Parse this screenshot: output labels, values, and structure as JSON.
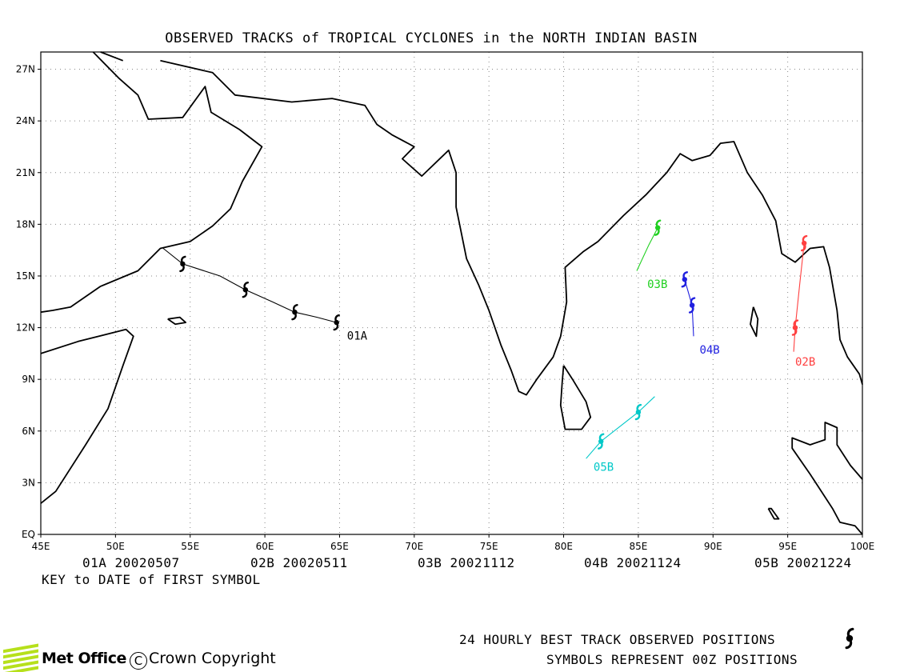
{
  "title": "OBSERVED TRACKS of TROPICAL CYCLONES in the NORTH INDIAN BASIN",
  "map": {
    "lon_range": [
      45,
      100
    ],
    "lat_range": [
      0,
      28
    ],
    "grid": "dotted",
    "lon_ticks": [
      "45E",
      "50E",
      "55E",
      "60E",
      "65E",
      "70E",
      "75E",
      "80E",
      "85E",
      "90E",
      "95E",
      "100E"
    ],
    "lat_ticks": [
      "EQ",
      "3N",
      "6N",
      "9N",
      "12N",
      "15N",
      "18N",
      "21N",
      "24N",
      "27N"
    ]
  },
  "storms": [
    {
      "id": "01A",
      "color": "#000000",
      "first_date": "20020507",
      "track": [
        [
          53.2,
          16.6
        ],
        [
          54.5,
          15.7
        ],
        [
          57,
          15
        ],
        [
          58.7,
          14.2
        ],
        [
          60.5,
          13.5
        ],
        [
          62,
          12.9
        ],
        [
          63.5,
          12.6
        ],
        [
          64.8,
          12.3
        ]
      ],
      "symbols": [
        [
          54.5,
          15.7
        ],
        [
          58.7,
          14.2
        ],
        [
          62,
          12.9
        ],
        [
          64.8,
          12.3
        ]
      ],
      "label": [
        65.5,
        11.3
      ]
    },
    {
      "id": "02B",
      "color": "#ff4040",
      "first_date": "20020511",
      "track": [
        [
          95.4,
          10.6
        ],
        [
          95.5,
          12
        ],
        [
          95.8,
          14.5
        ],
        [
          96.1,
          16.9
        ]
      ],
      "symbols": [
        [
          95.5,
          12
        ],
        [
          96.1,
          16.9
        ]
      ],
      "label": [
        95.5,
        9.8
      ]
    },
    {
      "id": "03B",
      "color": "#20d020",
      "first_date": "20021112",
      "track": [
        [
          84.9,
          15.3
        ],
        [
          85.7,
          16.8
        ],
        [
          86.3,
          17.8
        ]
      ],
      "symbols": [
        [
          86.3,
          17.8
        ]
      ],
      "label": [
        85.6,
        14.3
      ]
    },
    {
      "id": "04B",
      "color": "#2020e0",
      "first_date": "20021124",
      "track": [
        [
          88.1,
          14.8
        ],
        [
          88.6,
          13.3
        ],
        [
          88.7,
          11.5
        ]
      ],
      "symbols": [
        [
          88.1,
          14.8
        ],
        [
          88.6,
          13.3
        ]
      ],
      "label": [
        89.1,
        10.5
      ]
    },
    {
      "id": "05B",
      "color": "#00c8c8",
      "first_date": "20021224",
      "track": [
        [
          81.5,
          4.4
        ],
        [
          82.5,
          5.4
        ],
        [
          85,
          7.1
        ],
        [
          86.1,
          8.0
        ]
      ],
      "symbols": [
        [
          82.5,
          5.4
        ],
        [
          85,
          7.1
        ]
      ],
      "label": [
        82,
        3.7
      ]
    }
  ],
  "key_caption": "KEY to DATE of FIRST SYMBOL",
  "legend": {
    "line1": "24 HOURLY BEST TRACK OBSERVED POSITIONS",
    "line2": "SYMBOLS REPRESENT 00Z POSITIONS"
  },
  "footer": {
    "logo_text": "Met Office",
    "copyright": "Crown Copyright",
    "copyright_symbol": "C"
  },
  "coastlines": {
    "arabia": [
      [
        48.5,
        28
      ],
      [
        50.2,
        26.5
      ],
      [
        51.5,
        25.5
      ],
      [
        52.2,
        24.1
      ],
      [
        54.5,
        24.2
      ],
      [
        56,
        26
      ],
      [
        56.4,
        24.5
      ],
      [
        58.3,
        23.5
      ],
      [
        59.8,
        22.5
      ],
      [
        58.5,
        20.5
      ],
      [
        57.7,
        18.9
      ],
      [
        56.5,
        17.9
      ],
      [
        55,
        17
      ],
      [
        53,
        16.6
      ],
      [
        51.5,
        15.3
      ],
      [
        49,
        14.4
      ],
      [
        47,
        13.2
      ],
      [
        45.8,
        13
      ],
      [
        45,
        12.9
      ]
    ],
    "africa": [
      [
        45,
        10.5
      ],
      [
        47.5,
        11.2
      ],
      [
        50.7,
        11.9
      ],
      [
        51.2,
        11.5
      ],
      [
        50.5,
        9.8
      ],
      [
        49.5,
        7.3
      ],
      [
        48,
        5.2
      ],
      [
        46,
        2.5
      ],
      [
        45,
        1.8
      ]
    ],
    "gulf_persian_oman": [
      [
        49,
        28
      ],
      [
        50.5,
        27.5
      ]
    ],
    "iran_pak_india": [
      [
        53,
        27.5
      ],
      [
        56.5,
        26.8
      ],
      [
        58,
        25.5
      ],
      [
        61.8,
        25.1
      ],
      [
        64.5,
        25.3
      ],
      [
        66.7,
        24.9
      ],
      [
        67.5,
        23.8
      ],
      [
        68.5,
        23.2
      ],
      [
        70,
        22.5
      ],
      [
        69.2,
        21.8
      ],
      [
        70.5,
        20.8
      ],
      [
        72.3,
        22.3
      ],
      [
        72.8,
        21
      ],
      [
        72.8,
        19
      ],
      [
        73.5,
        16
      ],
      [
        74.3,
        14.5
      ],
      [
        75,
        13
      ],
      [
        75.8,
        11
      ],
      [
        76.5,
        9.5
      ],
      [
        77,
        8.3
      ],
      [
        77.5,
        8.1
      ],
      [
        78.2,
        9
      ],
      [
        79.3,
        10.3
      ],
      [
        79.8,
        11.5
      ],
      [
        80.2,
        13.5
      ],
      [
        80.1,
        15.5
      ],
      [
        81.3,
        16.4
      ],
      [
        82.3,
        17
      ],
      [
        84,
        18.5
      ],
      [
        85.5,
        19.7
      ],
      [
        86.9,
        21
      ],
      [
        87.8,
        22.1
      ],
      [
        88.6,
        21.7
      ],
      [
        89.8,
        22
      ],
      [
        90.5,
        22.7
      ],
      [
        91.4,
        22.8
      ],
      [
        92.3,
        21
      ],
      [
        93.3,
        19.7
      ],
      [
        94.2,
        18.2
      ],
      [
        94.6,
        16.3
      ],
      [
        95.5,
        15.8
      ],
      [
        96.5,
        16.6
      ],
      [
        97.4,
        16.7
      ],
      [
        97.8,
        15.5
      ],
      [
        98.3,
        13
      ],
      [
        98.5,
        11.3
      ],
      [
        99,
        10.3
      ],
      [
        99.8,
        9.3
      ],
      [
        100,
        8.7
      ]
    ],
    "sri_lanka": [
      [
        80,
        9.8
      ],
      [
        80.6,
        9
      ],
      [
        81.5,
        7.7
      ],
      [
        81.8,
        6.8
      ],
      [
        81.2,
        6.1
      ],
      [
        80.1,
        6.1
      ],
      [
        79.8,
        7.5
      ],
      [
        79.9,
        8.8
      ],
      [
        80,
        9.8
      ]
    ],
    "socotra": [
      [
        53.5,
        12.5
      ],
      [
        54.3,
        12.6
      ],
      [
        54.7,
        12.3
      ],
      [
        54,
        12.2
      ],
      [
        53.5,
        12.5
      ]
    ],
    "malaysia": [
      [
        100,
        3.2
      ],
      [
        99.2,
        4
      ],
      [
        98.3,
        5.2
      ],
      [
        98.3,
        6.2
      ],
      [
        97.5,
        6.5
      ],
      [
        97.5,
        5.5
      ],
      [
        96.5,
        5.2
      ],
      [
        95.3,
        5.6
      ],
      [
        95.3,
        5
      ],
      [
        96.5,
        3.5
      ],
      [
        98,
        1.5
      ],
      [
        98.5,
        0.7
      ],
      [
        99.5,
        0.5
      ],
      [
        100,
        0
      ]
    ],
    "andaman": [
      [
        92.7,
        13.2
      ],
      [
        92.5,
        12.2
      ],
      [
        92.9,
        11.5
      ],
      [
        93,
        12.5
      ],
      [
        92.7,
        13.2
      ]
    ],
    "nicobar": [
      [
        93.7,
        1.5
      ],
      [
        93.9,
        1.5
      ],
      [
        94.4,
        0.9
      ],
      [
        94.1,
        0.9
      ],
      [
        93.7,
        1.5
      ]
    ]
  }
}
